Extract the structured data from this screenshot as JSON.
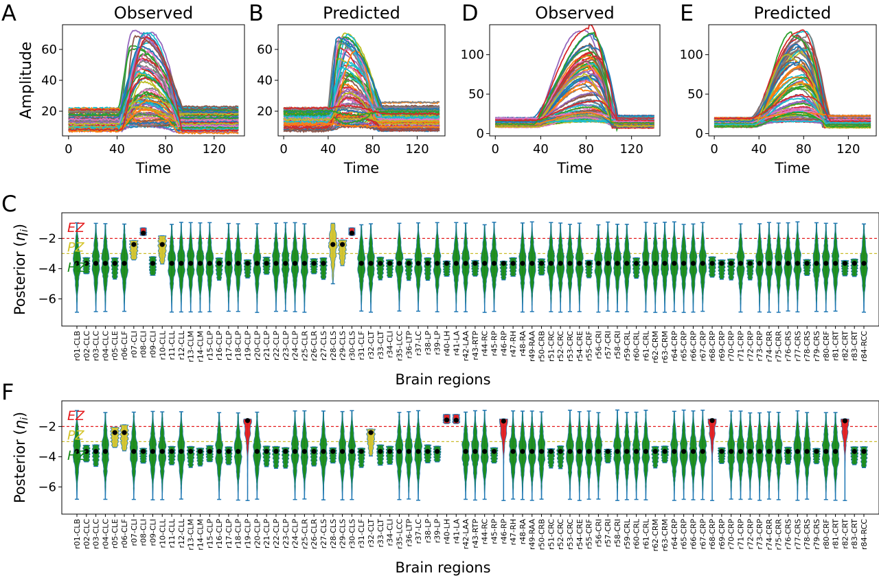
{
  "chart_data": [
    {
      "panel": "A",
      "type": "line",
      "title": "Observed",
      "xlabel": "Time",
      "ylabel": "Amplitude",
      "xlim": [
        -5,
        145
      ],
      "ylim": [
        4,
        76
      ],
      "xticks": [
        0,
        40,
        80,
        120
      ],
      "yticks": [
        20,
        40,
        60
      ],
      "series_count": 84,
      "baseline_range": [
        7,
        22
      ],
      "peak_range": [
        10,
        72
      ],
      "seizure_window": [
        42,
        92
      ],
      "peak_time": 60
    },
    {
      "panel": "B",
      "type": "line",
      "title": "Predicted",
      "xlabel": "Time",
      "ylabel": "",
      "xlim": [
        -5,
        145
      ],
      "ylim": [
        4,
        76
      ],
      "xticks": [
        0,
        40,
        80,
        120
      ],
      "yticks": [
        20,
        40,
        60
      ],
      "series_count": 84,
      "baseline_range": [
        7,
        22
      ],
      "peak_range": [
        10,
        71
      ],
      "seizure_window": [
        40,
        85
      ],
      "peak_time": 56
    },
    {
      "panel": "D",
      "type": "line",
      "title": "Observed",
      "xlabel": "Time",
      "ylabel": "",
      "xlim": [
        -5,
        145
      ],
      "ylim": [
        -3,
        138
      ],
      "xticks": [
        0,
        40,
        80,
        120
      ],
      "yticks": [
        0,
        50,
        100
      ],
      "series_count": 84,
      "baseline_range": [
        8,
        20
      ],
      "peak_range": [
        15,
        135
      ],
      "seizure_window": [
        35,
        105
      ],
      "peak_time": 82
    },
    {
      "panel": "E",
      "type": "line",
      "title": "Predicted",
      "xlabel": "Time",
      "ylabel": "",
      "xlim": [
        -5,
        145
      ],
      "ylim": [
        -3,
        138
      ],
      "xticks": [
        0,
        40,
        80,
        120
      ],
      "yticks": [
        0,
        50,
        100
      ],
      "series_count": 84,
      "baseline_range": [
        8,
        20
      ],
      "peak_range": [
        15,
        133
      ],
      "seizure_window": [
        35,
        100
      ],
      "peak_time": 76
    },
    {
      "panel": "C",
      "type": "violin",
      "xlabel": "Brain regions",
      "ylabel": "Posterior (ηi)",
      "ylim": [
        -7.8,
        -0.3
      ],
      "yticks": [
        -6,
        -4,
        -2
      ],
      "ez_threshold": -2.0,
      "pz_threshold": -3.0,
      "zone_labels": {
        "ez": "EZ",
        "pz": "PZ",
        "hz": "HZ"
      },
      "zone_colors": {
        "ez": "#e41a1c",
        "pz": "#d4c42a",
        "hz": "#178a17"
      },
      "categories": [
        "r01-CLB",
        "r02-CLC",
        "r03-CLC",
        "r04-CLC",
        "r05-CLE",
        "r06-CLF",
        "r07-CLI",
        "r08-CLI",
        "r09-CLI",
        "r10-CLL",
        "r11-CLL",
        "r12-CLL",
        "r13-CLM",
        "r14-CLM",
        "r15-CLP",
        "r16-CLP",
        "r17-CLP",
        "r18-CLP",
        "r19-CLP",
        "r20-CLP",
        "r21-CLP",
        "r22-CLP",
        "r23-CLP",
        "r24-CLP",
        "r25-CLR",
        "r26-CLR",
        "r27-CLS",
        "r28-CLS",
        "r29-CLS",
        "r30-CLS",
        "r31-CLF",
        "r32-CLT",
        "r33-CLT",
        "r34-CLI",
        "r35-LCC",
        "r36-LTP",
        "r37-LC",
        "r38-LP",
        "r39-LP",
        "r40-LH",
        "r41-LA",
        "r42-LAA",
        "r43-RTP",
        "r44-RC",
        "r45-RP",
        "r46-RP",
        "r47-RH",
        "r48-RA",
        "r49-RAA",
        "r50-CRB",
        "r51-CRC",
        "r52-CRC",
        "r53-CRC",
        "r54-CRE",
        "r55-CRF",
        "r56-CRI",
        "r57-CRI",
        "r58-CRI",
        "r59-CRL",
        "r60-CRL",
        "r61-CRL",
        "r62-CRM",
        "r63-CRM",
        "r64-CRP",
        "r65-CRP",
        "r66-CRP",
        "r67-CRP",
        "r68-CRP",
        "r69-CRP",
        "r70-CRP",
        "r71-CRP",
        "r72-CRP",
        "r73-CRP",
        "r74-CRR",
        "r75-CRR",
        "r76-CRS",
        "r77-CRS",
        "r78-CRS",
        "r79-CRS",
        "r80-CRF",
        "r81-CRT",
        "r82-CRT",
        "r83-CRT",
        "r84-RCC"
      ],
      "ez_regions": [
        8,
        30
      ],
      "pz_regions": [
        7,
        10,
        28,
        29
      ]
    },
    {
      "panel": "F",
      "type": "violin",
      "xlabel": "Brain regions",
      "ylabel": "Posterior (ηi)",
      "ylim": [
        -7.8,
        -0.3
      ],
      "yticks": [
        -6,
        -4,
        -2
      ],
      "ez_threshold": -2.0,
      "pz_threshold": -3.0,
      "zone_labels": {
        "ez": "EZ",
        "pz": "PZ",
        "hz": "HZ"
      },
      "zone_colors": {
        "ez": "#e41a1c",
        "pz": "#d4c42a",
        "hz": "#178a17"
      },
      "categories": [
        "r01-CLB",
        "r02-CLC",
        "r03-CLC",
        "r04-CLC",
        "r05-CLE",
        "r06-CLF",
        "r07-CLI",
        "r08-CLI",
        "r09-CLI",
        "r10-CLL",
        "r11-CLL",
        "r12-CLL",
        "r13-CLM",
        "r14-CLM",
        "r15-CLP",
        "r16-CLP",
        "r17-CLP",
        "r18-CLP",
        "r19-CLP",
        "r20-CLP",
        "r21-CLP",
        "r22-CLP",
        "r23-CLP",
        "r24-CLP",
        "r25-CLR",
        "r26-CLR",
        "r27-CLS",
        "r28-CLS",
        "r29-CLS",
        "r30-CLS",
        "r31-CLF",
        "r32-CLT",
        "r33-CLT",
        "r34-CLI",
        "r35-LCC",
        "r36-LTP",
        "r37-LC",
        "r38-LP",
        "r39-LP",
        "r40-LH",
        "r41-LA",
        "r42-LAA",
        "r43-RTP",
        "r44-RC",
        "r45-RP",
        "r46-RP",
        "r47-RH",
        "r48-RA",
        "r49-RAA",
        "r50-CRB",
        "r51-CRC",
        "r52-CRC",
        "r53-CRC",
        "r54-CRE",
        "r55-CRF",
        "r56-CRI",
        "r57-CRI",
        "r58-CRI",
        "r59-CRL",
        "r60-CRL",
        "r61-CRL",
        "r62-CRM",
        "r63-CRM",
        "r64-CRP",
        "r65-CRP",
        "r66-CRP",
        "r67-CRP",
        "r68-CRP",
        "r69-CRP",
        "r70-CRP",
        "r71-CRP",
        "r72-CRP",
        "r73-CRP",
        "r74-CRR",
        "r75-CRR",
        "r76-CRS",
        "r77-CRS",
        "r78-CRS",
        "r79-CRS",
        "r80-CRF",
        "r81-CRT",
        "r82-CRT",
        "r83-CRT",
        "r84-RCC"
      ],
      "ez_regions": [
        19,
        40,
        41,
        46,
        68,
        82
      ],
      "pz_regions": [
        5,
        6,
        32
      ]
    }
  ],
  "panel_letters": [
    "A",
    "B",
    "D",
    "E",
    "C",
    "F"
  ],
  "colors": {
    "hz_fill": "#178a17",
    "hz_edge": "#1f77b4",
    "ez_fill": "#e41a1c",
    "pz_fill": "#d4c42a",
    "ez_line": "#e41a1c",
    "pz_line": "#c9bb2a",
    "median_dot": "#000000",
    "palette": [
      "#1f77b4",
      "#ff7f0e",
      "#2ca02c",
      "#d62728",
      "#9467bd",
      "#8c564b",
      "#e377c2",
      "#7f7f7f",
      "#bcbd22",
      "#17becf"
    ]
  }
}
